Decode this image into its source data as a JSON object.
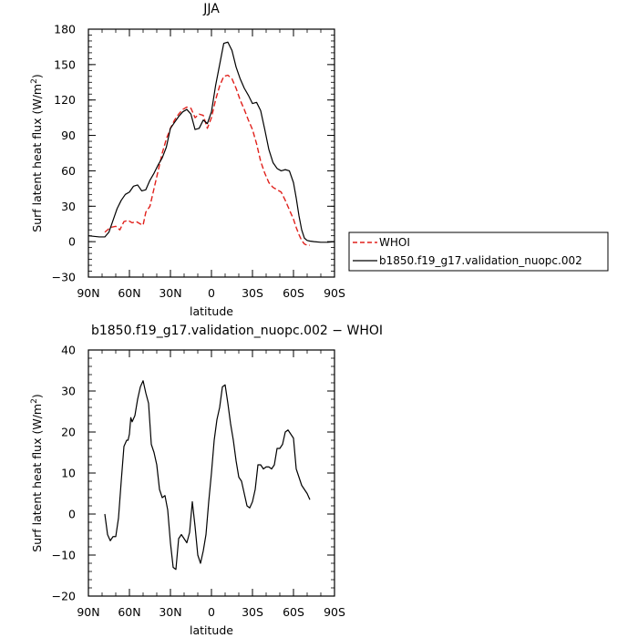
{
  "chart_data": [
    {
      "type": "line",
      "title": "JJA",
      "xlabel": "latitude",
      "ylabel": "Surf latent heat flux (W/m",
      "ylabel_sup": "2",
      "ylabel_tail": ")",
      "xlim": [
        90,
        -90
      ],
      "ylim": [
        -30,
        180
      ],
      "x_ticks": [
        90,
        60,
        30,
        0,
        -30,
        -60,
        -90
      ],
      "x_tick_labels": [
        "90N",
        "60N",
        "30N",
        "0",
        "30S",
        "60S",
        "90S"
      ],
      "y_ticks": [
        -30,
        0,
        30,
        60,
        90,
        120,
        150,
        180
      ],
      "y_tick_labels": [
        "−30",
        "0",
        "30",
        "60",
        "90",
        "120",
        "150",
        "180"
      ],
      "legend_placement": "right",
      "series": [
        {
          "name": "WHOI",
          "color": "#e0201b",
          "dash": "dashed",
          "x": [
            78,
            74,
            70,
            67,
            64,
            61,
            58,
            55,
            52,
            50,
            48,
            45,
            42,
            39,
            36,
            33,
            30,
            27,
            24,
            21,
            18,
            15,
            12,
            9,
            6,
            3,
            0,
            -3,
            -6,
            -9,
            -12,
            -15,
            -18,
            -21,
            -24,
            -27,
            -30,
            -33,
            -36,
            -39,
            -42,
            -45,
            -48,
            -51,
            -54,
            -57,
            -60,
            -62,
            -64,
            -66,
            -68,
            -70,
            -72
          ],
          "y": [
            8,
            12,
            13,
            10,
            17,
            18,
            16,
            17,
            15,
            14,
            25,
            30,
            45,
            60,
            75,
            87,
            96,
            103,
            108,
            112,
            114,
            113,
            105,
            108,
            107,
            96,
            105,
            120,
            132,
            140,
            141,
            138,
            130,
            120,
            112,
            103,
            95,
            83,
            68,
            58,
            50,
            46,
            44,
            42,
            35,
            27,
            19,
            12,
            6,
            1,
            -2,
            -3,
            -3
          ]
        },
        {
          "name": "b1850.f19_g17.validation_nuopc.002",
          "color": "#000000",
          "dash": "solid",
          "x": [
            90,
            86,
            82,
            78,
            75,
            72,
            69,
            66,
            63,
            60,
            57,
            54,
            51,
            48,
            45,
            42,
            39,
            36,
            33,
            30,
            27,
            24,
            21,
            18,
            15,
            12,
            9,
            6,
            3,
            0,
            -3,
            -6,
            -9,
            -12,
            -15,
            -18,
            -21,
            -24,
            -27,
            -30,
            -33,
            -36,
            -39,
            -42,
            -45,
            -48,
            -51,
            -54,
            -57,
            -60,
            -62,
            -64,
            -66,
            -68,
            -70,
            -72,
            -75,
            -80,
            -85,
            -90
          ],
          "y": [
            5,
            4.5,
            4,
            4,
            8,
            18,
            28,
            35,
            40,
            42,
            47,
            48,
            43,
            44,
            52,
            58,
            65,
            71,
            80,
            96,
            101,
            106,
            110,
            112,
            108,
            95,
            96,
            103,
            100,
            110,
            132,
            150,
            168,
            169,
            162,
            148,
            138,
            130,
            124,
            117,
            118,
            111,
            95,
            78,
            67,
            62,
            60,
            61,
            60,
            50,
            37,
            22,
            10,
            3,
            1,
            0.5,
            0,
            -0.5,
            -0.5,
            0
          ]
        }
      ]
    },
    {
      "type": "line",
      "title": "b1850.f19_g17.validation_nuopc.002 − WHOI",
      "xlabel": "latitude",
      "ylabel": "Surf latent heat flux (W/m",
      "ylabel_sup": "2",
      "ylabel_tail": ")",
      "xlim": [
        90,
        -90
      ],
      "ylim": [
        -20,
        40
      ],
      "x_ticks": [
        90,
        60,
        30,
        0,
        -30,
        -60,
        -90
      ],
      "x_tick_labels": [
        "90N",
        "60N",
        "30N",
        "0",
        "30S",
        "60S",
        "90S"
      ],
      "y_ticks": [
        -20,
        -10,
        0,
        10,
        20,
        30,
        40
      ],
      "y_tick_labels": [
        "−20",
        "−10",
        "0",
        "10",
        "20",
        "30",
        "40"
      ],
      "series": [
        {
          "name": "",
          "color": "#000000",
          "dash": "solid",
          "x": [
            78,
            76,
            74,
            72,
            70,
            68,
            66,
            64,
            62,
            61,
            60,
            59,
            58,
            56,
            54,
            52,
            50,
            48,
            46,
            44,
            42,
            40,
            38,
            36,
            34,
            32,
            30,
            28,
            26,
            24,
            22,
            20,
            18,
            16,
            14,
            12,
            10,
            8,
            6,
            4,
            2,
            0,
            -2,
            -4,
            -6,
            -8,
            -10,
            -12,
            -14,
            -16,
            -18,
            -20,
            -22,
            -24,
            -26,
            -28,
            -30,
            -32,
            -34,
            -36,
            -38,
            -40,
            -42,
            -44,
            -46,
            -48,
            -50,
            -52,
            -54,
            -56,
            -58,
            -60,
            -62,
            -64,
            -66,
            -68,
            -70,
            -72
          ],
          "y": [
            0,
            -5,
            -6.5,
            -5.5,
            -5.5,
            -1,
            8,
            16.5,
            18,
            18,
            19.5,
            23.5,
            22.5,
            24,
            28,
            31,
            32.5,
            29.5,
            27,
            17,
            15,
            12,
            6,
            4,
            4.5,
            1,
            -7,
            -13,
            -13.5,
            -6,
            -5,
            -6,
            -7,
            -4.5,
            3,
            -3,
            -10,
            -12,
            -9,
            -5,
            3,
            10,
            18,
            23,
            26,
            31,
            31.5,
            27,
            22,
            18,
            13,
            9,
            8,
            5,
            2,
            1.5,
            3,
            6,
            12,
            12,
            11,
            11.5,
            11.5,
            11,
            12,
            16,
            16,
            17,
            20,
            20.5,
            19.5,
            18.5,
            11,
            9,
            7,
            6,
            5,
            3.5
          ]
        }
      ]
    }
  ],
  "legend": {
    "whoi_label": "WHOI",
    "model_label": "b1850.f19_g17.validation_nuopc.002"
  }
}
